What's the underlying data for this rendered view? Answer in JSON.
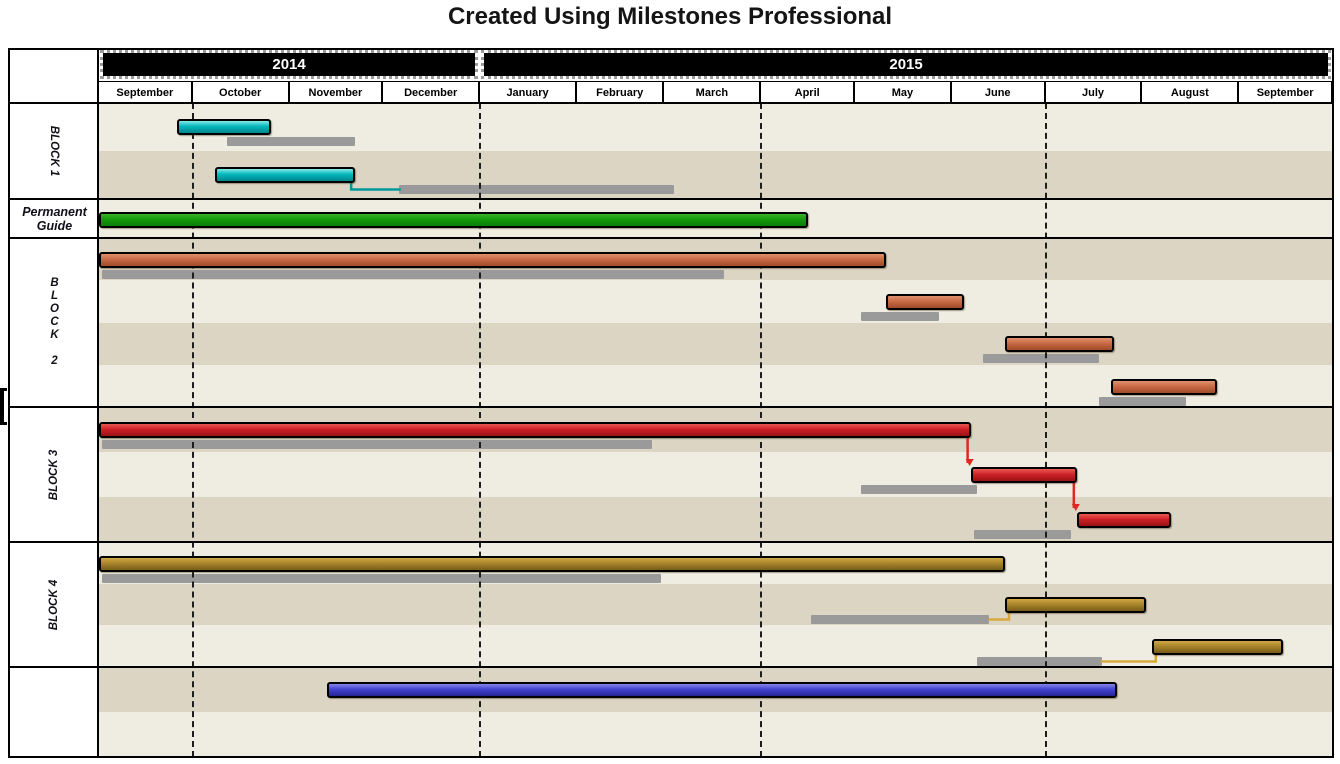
{
  "chart_data": {
    "type": "gantt",
    "title": "Created Using Milestones Professional",
    "timeline": {
      "start": "2014-09-01",
      "end": "2015-10-01"
    },
    "years": [
      {
        "label": "2014",
        "start": "2014-09-01",
        "end": "2015-01-01"
      },
      {
        "label": "2015",
        "start": "2015-01-01",
        "end": "2015-10-01"
      }
    ],
    "months": [
      "September",
      "October",
      "November",
      "December",
      "January",
      "February",
      "March",
      "April",
      "May",
      "June",
      "July",
      "August",
      "September"
    ],
    "quarter_gridlines": [
      "2014-10-01",
      "2015-01-01",
      "2015-04-01",
      "2015-07-01"
    ],
    "palette": {
      "stripe_light": "#efece1",
      "stripe_tan": "#ddd5c3",
      "shadow_gray": "#9a9a9a",
      "bar_colors": {
        "cyan": [
          "#86e8e6",
          "#00b6bc",
          "#00858b"
        ],
        "green": [
          "#3db32a",
          "#119a0a",
          "#0b7d07"
        ],
        "orange": [
          "#e0906d",
          "#c96b45",
          "#a14a2a"
        ],
        "red": [
          "#ea5a52",
          "#ce2127",
          "#991114"
        ],
        "olive": [
          "#cfa845",
          "#a8842b",
          "#775c18"
        ],
        "blue": [
          "#8585ea",
          "#4343cf",
          "#252596"
        ]
      },
      "connector_teal": "#00999b",
      "connector_gold": "#d7a93f",
      "arrow_red": "#e02823"
    },
    "blocks": [
      {
        "label": "BLOCK 1",
        "orientation": "rotate-down",
        "first_stripe": "light",
        "lanes": [
          [
            {
              "id": "b1t1",
              "kind": "task",
              "color": "cyan",
              "start": "2014-09-26",
              "end": "2014-10-26"
            },
            {
              "id": "b1s1",
              "kind": "shadow",
              "start": "2014-10-12",
              "end": "2014-11-22"
            }
          ],
          [
            {
              "id": "b1t2",
              "kind": "task",
              "color": "cyan",
              "start": "2014-10-08",
              "end": "2014-11-22"
            },
            {
              "id": "b1s2",
              "kind": "shadow",
              "start": "2014-12-06",
              "end": "2015-03-04"
            }
          ]
        ]
      },
      {
        "label": "Permanent Guide",
        "label_lines": [
          "Permanent",
          "Guide"
        ],
        "orientation": "horizontal",
        "first_stripe": "light",
        "lanes": [
          [
            {
              "id": "pg1",
              "kind": "task",
              "color": "green",
              "start": "2014-09-01",
              "end": "2015-04-16"
            }
          ]
        ]
      },
      {
        "label": "BLOCK 2",
        "label_lines": [
          "B",
          "L",
          "O",
          "C",
          "K",
          "",
          "2"
        ],
        "orientation": "stacked",
        "first_stripe": "tan",
        "lanes": [
          [
            {
              "id": "b2t1",
              "kind": "task",
              "color": "orange",
              "start": "2014-09-01",
              "end": "2015-05-11"
            },
            {
              "id": "b2s1",
              "kind": "shadow",
              "start": "2014-09-02",
              "end": "2015-03-20"
            }
          ],
          [
            {
              "id": "b2t2",
              "kind": "task",
              "color": "orange",
              "start": "2015-05-11",
              "end": "2015-06-05"
            },
            {
              "id": "b2s2",
              "kind": "shadow",
              "start": "2015-05-03",
              "end": "2015-05-28"
            }
          ],
          [
            {
              "id": "b2t3",
              "kind": "task",
              "color": "orange",
              "start": "2015-06-18",
              "end": "2015-07-23"
            },
            {
              "id": "b2s3",
              "kind": "shadow",
              "start": "2015-06-11",
              "end": "2015-07-18"
            }
          ],
          [
            {
              "id": "b2t4",
              "kind": "task",
              "color": "orange",
              "start": "2015-07-22",
              "end": "2015-08-25"
            },
            {
              "id": "b2s4",
              "kind": "shadow",
              "start": "2015-07-18",
              "end": "2015-08-15"
            }
          ]
        ]
      },
      {
        "label": "BLOCK 3",
        "orientation": "rotate-up",
        "first_stripe": "tan",
        "lanes": [
          [
            {
              "id": "b3t1",
              "kind": "task",
              "color": "red",
              "start": "2014-09-01",
              "end": "2015-06-07"
            },
            {
              "id": "b3s1",
              "kind": "shadow",
              "start": "2014-09-02",
              "end": "2015-02-25"
            }
          ],
          [
            {
              "id": "b3t2",
              "kind": "task",
              "color": "red",
              "start": "2015-06-07",
              "end": "2015-07-11"
            },
            {
              "id": "b3s2",
              "kind": "shadow",
              "start": "2015-05-03",
              "end": "2015-06-09"
            }
          ],
          [
            {
              "id": "b3t3",
              "kind": "task",
              "color": "red",
              "start": "2015-07-11",
              "end": "2015-08-10"
            },
            {
              "id": "b3s3",
              "kind": "shadow",
              "start": "2015-06-08",
              "end": "2015-07-09"
            }
          ]
        ]
      },
      {
        "label": "BLOCK 4",
        "orientation": "rotate-up",
        "first_stripe": "light",
        "lanes": [
          [
            {
              "id": "b4t1",
              "kind": "task",
              "color": "olive",
              "start": "2014-09-01",
              "end": "2015-06-18"
            },
            {
              "id": "b4s1",
              "kind": "shadow",
              "start": "2014-09-02",
              "end": "2015-02-28"
            }
          ],
          [
            {
              "id": "b4t2",
              "kind": "task",
              "color": "olive",
              "start": "2015-06-18",
              "end": "2015-08-02"
            },
            {
              "id": "b4s2",
              "kind": "shadow",
              "start": "2015-04-17",
              "end": "2015-06-13"
            }
          ],
          [
            {
              "id": "b4t3",
              "kind": "task",
              "color": "olive",
              "start": "2015-08-04",
              "end": "2015-09-15"
            },
            {
              "id": "b4s3",
              "kind": "shadow",
              "start": "2015-06-09",
              "end": "2015-07-19"
            }
          ]
        ]
      },
      {
        "label": "",
        "orientation": "horizontal",
        "first_stripe": "tan",
        "lanes": [
          [
            {
              "id": "b5t1",
              "kind": "task",
              "color": "blue",
              "start": "2014-11-13",
              "end": "2015-07-24"
            }
          ],
          []
        ]
      }
    ],
    "links": [
      {
        "from": "b1t2",
        "to": "b1s2",
        "shape": "down-right",
        "color": "#00999b"
      },
      {
        "from": "b3t1",
        "to": "b3t2",
        "shape": "arrow-down",
        "color": "#e02823"
      },
      {
        "from": "b3t2",
        "to": "b3t3",
        "shape": "arrow-down",
        "color": "#e02823"
      },
      {
        "from": "b4s2",
        "to": "b4t2",
        "shape": "right-up",
        "color": "#d7a93f"
      },
      {
        "from": "b4s3",
        "to": "b4t3",
        "shape": "right-up",
        "color": "#d7a93f"
      }
    ]
  }
}
